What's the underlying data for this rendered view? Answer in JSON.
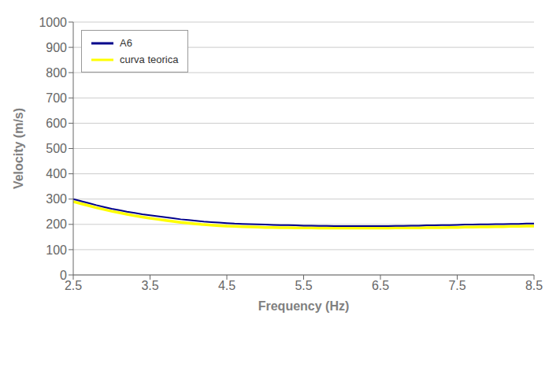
{
  "chart_data": {
    "type": "line",
    "xlabel": "Frequency (Hz)",
    "ylabel": "Velocity (m/s)",
    "x": [
      2.5,
      2.6,
      2.7,
      2.8,
      2.9,
      3.0,
      3.1,
      3.2,
      3.3,
      3.4,
      3.5,
      3.6,
      3.7,
      3.8,
      3.9,
      4.0,
      4.1,
      4.2,
      4.3,
      4.4,
      4.5,
      4.6,
      4.7,
      4.8,
      4.9,
      5.0,
      5.1,
      5.2,
      5.3,
      5.4,
      5.5,
      5.6,
      5.7,
      5.8,
      5.9,
      6.0,
      6.1,
      6.2,
      6.3,
      6.4,
      6.5,
      6.6,
      6.7,
      6.8,
      6.9,
      7.0,
      7.1,
      7.2,
      7.3,
      7.4,
      7.5,
      7.6,
      7.7,
      7.8,
      7.9,
      8.0,
      8.1,
      8.2,
      8.3,
      8.4,
      8.5
    ],
    "series": [
      {
        "name": "A6",
        "color": "#00008B",
        "values": [
          300,
          292,
          284,
          276,
          269,
          262,
          256,
          250,
          245,
          240,
          236,
          232,
          228,
          224,
          220,
          217,
          214,
          211,
          209,
          207,
          205,
          203,
          202,
          201,
          200,
          199,
          198,
          197,
          197,
          196,
          195,
          195,
          194,
          194,
          193,
          193,
          193,
          193,
          193,
          193,
          193,
          193,
          194,
          194,
          195,
          195,
          196,
          196,
          197,
          197,
          198,
          199,
          199,
          200,
          200,
          201,
          201,
          202,
          202,
          203,
          203
        ]
      },
      {
        "name": "curva teorica",
        "color": "#ffff00",
        "values": [
          290,
          282,
          274,
          266,
          259,
          252,
          246,
          240,
          234,
          229,
          224,
          220,
          216,
          212,
          208,
          205,
          202,
          199,
          197,
          195,
          193,
          192,
          191,
          190,
          189,
          188,
          188,
          187,
          187,
          186,
          186,
          186,
          185,
          185,
          185,
          185,
          185,
          185,
          185,
          185,
          185,
          185,
          186,
          186,
          186,
          186,
          187,
          187,
          187,
          188,
          188,
          189,
          189,
          190,
          190,
          191,
          191,
          192,
          192,
          193,
          193
        ]
      }
    ],
    "xlim": [
      2.5,
      8.5
    ],
    "ylim": [
      0,
      1000
    ],
    "xticks": [
      2.5,
      3.5,
      4.5,
      5.5,
      6.5,
      7.5,
      8.5
    ],
    "yticks": [
      0,
      100,
      200,
      300,
      400,
      500,
      600,
      700,
      800,
      900,
      1000
    ],
    "grid": "y",
    "legend": "upper left"
  }
}
